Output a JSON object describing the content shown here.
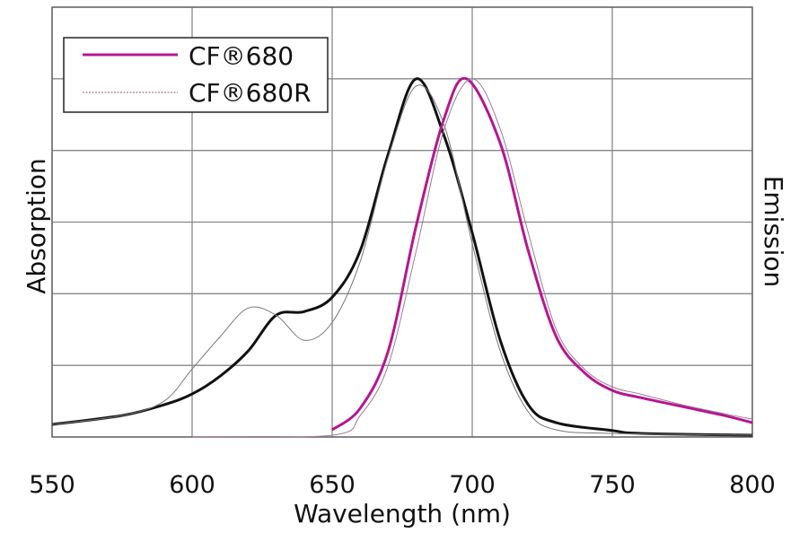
{
  "chart_data": {
    "type": "line",
    "title": "",
    "xlabel": "Wavelength (nm)",
    "ylabel_left": "Absorption",
    "ylabel_right": "Emission",
    "xlim": [
      550,
      800
    ],
    "ylim": [
      0,
      1.2
    ],
    "xticks": [
      550,
      600,
      650,
      700,
      750,
      800
    ],
    "grid": true,
    "legend_placement": "top-left",
    "colors": {
      "magenta": "#b5168f",
      "black": "#111111",
      "gray": "#888888"
    },
    "legend": [
      {
        "label": "CF®680",
        "style": "solid-magenta"
      },
      {
        "label": "CF®680R",
        "style": "thin-dotted"
      }
    ],
    "series": [
      {
        "name": "CF®680",
        "kind": "absorption",
        "color": "#111111",
        "width": 3,
        "x": [
          550,
          575,
          590,
          600,
          610,
          620,
          630,
          640,
          650,
          660,
          670,
          680,
          690,
          700,
          710,
          720,
          730,
          750,
          760,
          800
        ],
        "y": [
          0.035,
          0.06,
          0.09,
          0.12,
          0.17,
          0.24,
          0.34,
          0.35,
          0.39,
          0.52,
          0.79,
          1.0,
          0.84,
          0.57,
          0.27,
          0.09,
          0.04,
          0.018,
          0.01,
          0.005
        ]
      },
      {
        "name": "CF®680",
        "kind": "emission",
        "color": "#b5168f",
        "width": 3,
        "x": [
          650,
          660,
          670,
          680,
          690,
          698,
          710,
          720,
          730,
          740,
          750,
          760,
          775,
          790,
          800
        ],
        "y": [
          0.02,
          0.08,
          0.24,
          0.59,
          0.89,
          1.0,
          0.82,
          0.52,
          0.28,
          0.18,
          0.13,
          0.11,
          0.085,
          0.06,
          0.04
        ]
      },
      {
        "name": "CF®680R",
        "kind": "absorption",
        "color": "#777777",
        "width": 1,
        "x": [
          550,
          575,
          590,
          600,
          610,
          620,
          630,
          640,
          650,
          660,
          670,
          680,
          690,
          700,
          710,
          720,
          730,
          750,
          800
        ],
        "y": [
          0.035,
          0.06,
          0.1,
          0.19,
          0.28,
          0.36,
          0.34,
          0.27,
          0.32,
          0.49,
          0.78,
          0.98,
          0.87,
          0.54,
          0.24,
          0.07,
          0.02,
          0.01,
          0.005
        ]
      },
      {
        "name": "CF®680R",
        "kind": "emission",
        "color": "#a07a98",
        "width": 1,
        "x": [
          600,
          650,
          660,
          670,
          680,
          690,
          700,
          710,
          720,
          730,
          740,
          750,
          760,
          775,
          790,
          800
        ],
        "y": [
          0.0,
          0.005,
          0.06,
          0.2,
          0.52,
          0.86,
          1.0,
          0.86,
          0.57,
          0.3,
          0.19,
          0.14,
          0.12,
          0.09,
          0.065,
          0.05
        ]
      }
    ]
  }
}
